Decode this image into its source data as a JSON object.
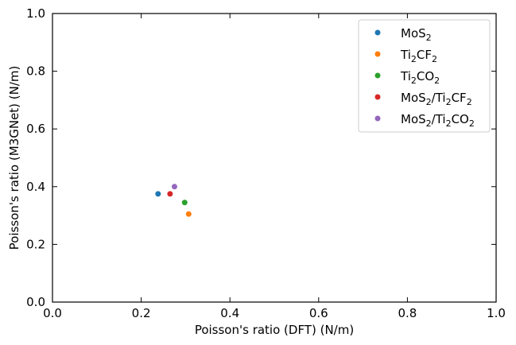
{
  "chart_data": {
    "type": "scatter",
    "title": "",
    "xlabel": "Poisson's ratio (DFT) (N/m)",
    "ylabel": "Poisson's ratio (M3GNet) (N/m)",
    "xlim": [
      0.0,
      1.0
    ],
    "ylim": [
      0.0,
      1.0
    ],
    "xticks": [
      "0.0",
      "0.2",
      "0.4",
      "0.6",
      "0.8",
      "1.0"
    ],
    "yticks": [
      "0.0",
      "0.2",
      "0.4",
      "0.6",
      "0.8",
      "1.0"
    ],
    "grid": false,
    "legend_position": "top-right",
    "series": [
      {
        "name": "MoS2",
        "label_parts": [
          [
            "MoS",
            ""
          ],
          [
            "2",
            "sub"
          ]
        ],
        "color": "#1f77b4",
        "x": [
          0.238
        ],
        "y": [
          0.375
        ]
      },
      {
        "name": "Ti2CF2",
        "label_parts": [
          [
            "Ti",
            ""
          ],
          [
            "2",
            "sub"
          ],
          [
            "CF",
            ""
          ],
          [
            "2",
            "sub"
          ]
        ],
        "color": "#ff7f0e",
        "x": [
          0.307
        ],
        "y": [
          0.305
        ]
      },
      {
        "name": "Ti2CO2",
        "label_parts": [
          [
            "Ti",
            ""
          ],
          [
            "2",
            "sub"
          ],
          [
            "CO",
            ""
          ],
          [
            "2",
            "sub"
          ]
        ],
        "color": "#2ca02c",
        "x": [
          0.298
        ],
        "y": [
          0.345
        ]
      },
      {
        "name": "MoS2/Ti2CF2",
        "label_parts": [
          [
            "MoS",
            ""
          ],
          [
            "2",
            "sub"
          ],
          [
            "/Ti",
            ""
          ],
          [
            "2",
            "sub"
          ],
          [
            "CF",
            ""
          ],
          [
            "2",
            "sub"
          ]
        ],
        "color": "#d62728",
        "x": [
          0.265
        ],
        "y": [
          0.375
        ]
      },
      {
        "name": "MoS2/Ti2CO2",
        "label_parts": [
          [
            "MoS",
            ""
          ],
          [
            "2",
            "sub"
          ],
          [
            "/Ti",
            ""
          ],
          [
            "2",
            "sub"
          ],
          [
            "CO",
            ""
          ],
          [
            "2",
            "sub"
          ]
        ],
        "color": "#9467bd",
        "x": [
          0.275
        ],
        "y": [
          0.4
        ]
      }
    ]
  }
}
